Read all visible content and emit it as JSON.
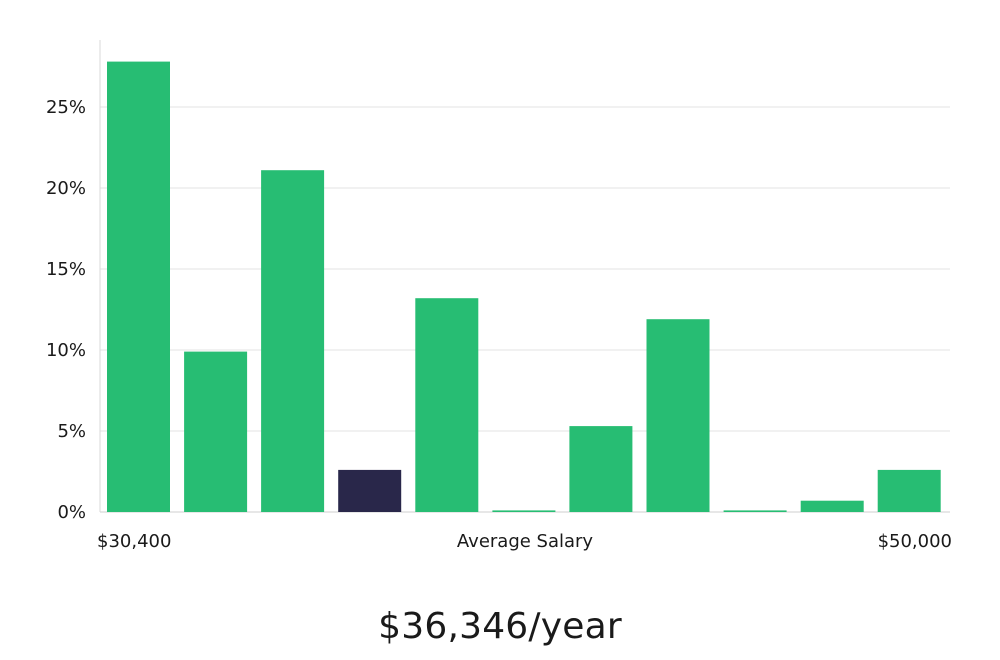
{
  "chart_data": {
    "type": "bar",
    "categories": [
      "1",
      "2",
      "3",
      "4",
      "5",
      "6",
      "7",
      "8",
      "9",
      "10",
      "11"
    ],
    "values": [
      27.8,
      9.9,
      21.1,
      2.6,
      13.2,
      0.1,
      5.3,
      11.9,
      0.1,
      0.7,
      2.6
    ],
    "highlight_index": 3,
    "ylim": [
      0,
      28
    ],
    "yticks": [
      0,
      5,
      10,
      15,
      20,
      25
    ],
    "ytick_suffix": "%",
    "x_start_label": "$30,400",
    "x_end_label": "$50,000",
    "xlabel": "Average Salary",
    "bar_color": "#27bd73",
    "highlight_color": "#29274a",
    "grid": true
  },
  "summary": {
    "salary_text": "$36,346/year"
  }
}
